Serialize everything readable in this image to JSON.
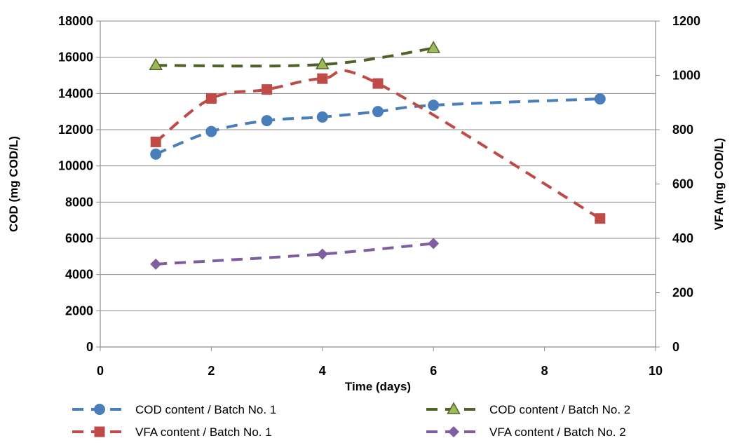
{
  "chart_data": {
    "type": "line",
    "title": "",
    "xlabel": "Time (days)",
    "ylabel": "COD (mg COD/L)",
    "y2label": "VFA (mg COD/L)",
    "xlim": [
      0,
      10
    ],
    "ylim": [
      0,
      18000
    ],
    "y2lim": [
      0,
      1200
    ],
    "xticks": [
      "0",
      "2",
      "4",
      "6",
      "8",
      "10"
    ],
    "yticks": [
      "0",
      "2000",
      "4000",
      "6000",
      "8000",
      "10000",
      "12000",
      "14000",
      "16000",
      "18000"
    ],
    "y2ticks": [
      "0",
      "200",
      "400",
      "600",
      "800",
      "1000",
      "1200"
    ],
    "grid": "horizontal",
    "legend_position": "bottom",
    "series": [
      {
        "name": "COD content / Batch No. 1",
        "axis": "left",
        "color": "#4a7ebb",
        "marker": "circle",
        "x": [
          1,
          2,
          3,
          4,
          5,
          6,
          9
        ],
        "y": [
          10650,
          11900,
          12500,
          12700,
          13000,
          13350,
          13700
        ]
      },
      {
        "name": "COD content / Batch No. 2",
        "axis": "left",
        "color": "#4f6228",
        "marker_fill": "#9bbb59",
        "marker": "triangle",
        "x": [
          1,
          4,
          6
        ],
        "y": [
          15550,
          15600,
          16500
        ]
      },
      {
        "name": "VFA content / Batch No. 1",
        "axis": "right",
        "color": "#be4b48",
        "marker": "square",
        "x": [
          1,
          2,
          3,
          4,
          5,
          9
        ],
        "y": [
          755,
          915,
          948,
          988,
          970,
          473
        ]
      },
      {
        "name": "VFA content / Batch No. 2",
        "axis": "right",
        "color": "#7f5fa0",
        "marker": "diamond",
        "x": [
          1,
          4,
          6
        ],
        "y": [
          305,
          342,
          381
        ]
      }
    ]
  }
}
